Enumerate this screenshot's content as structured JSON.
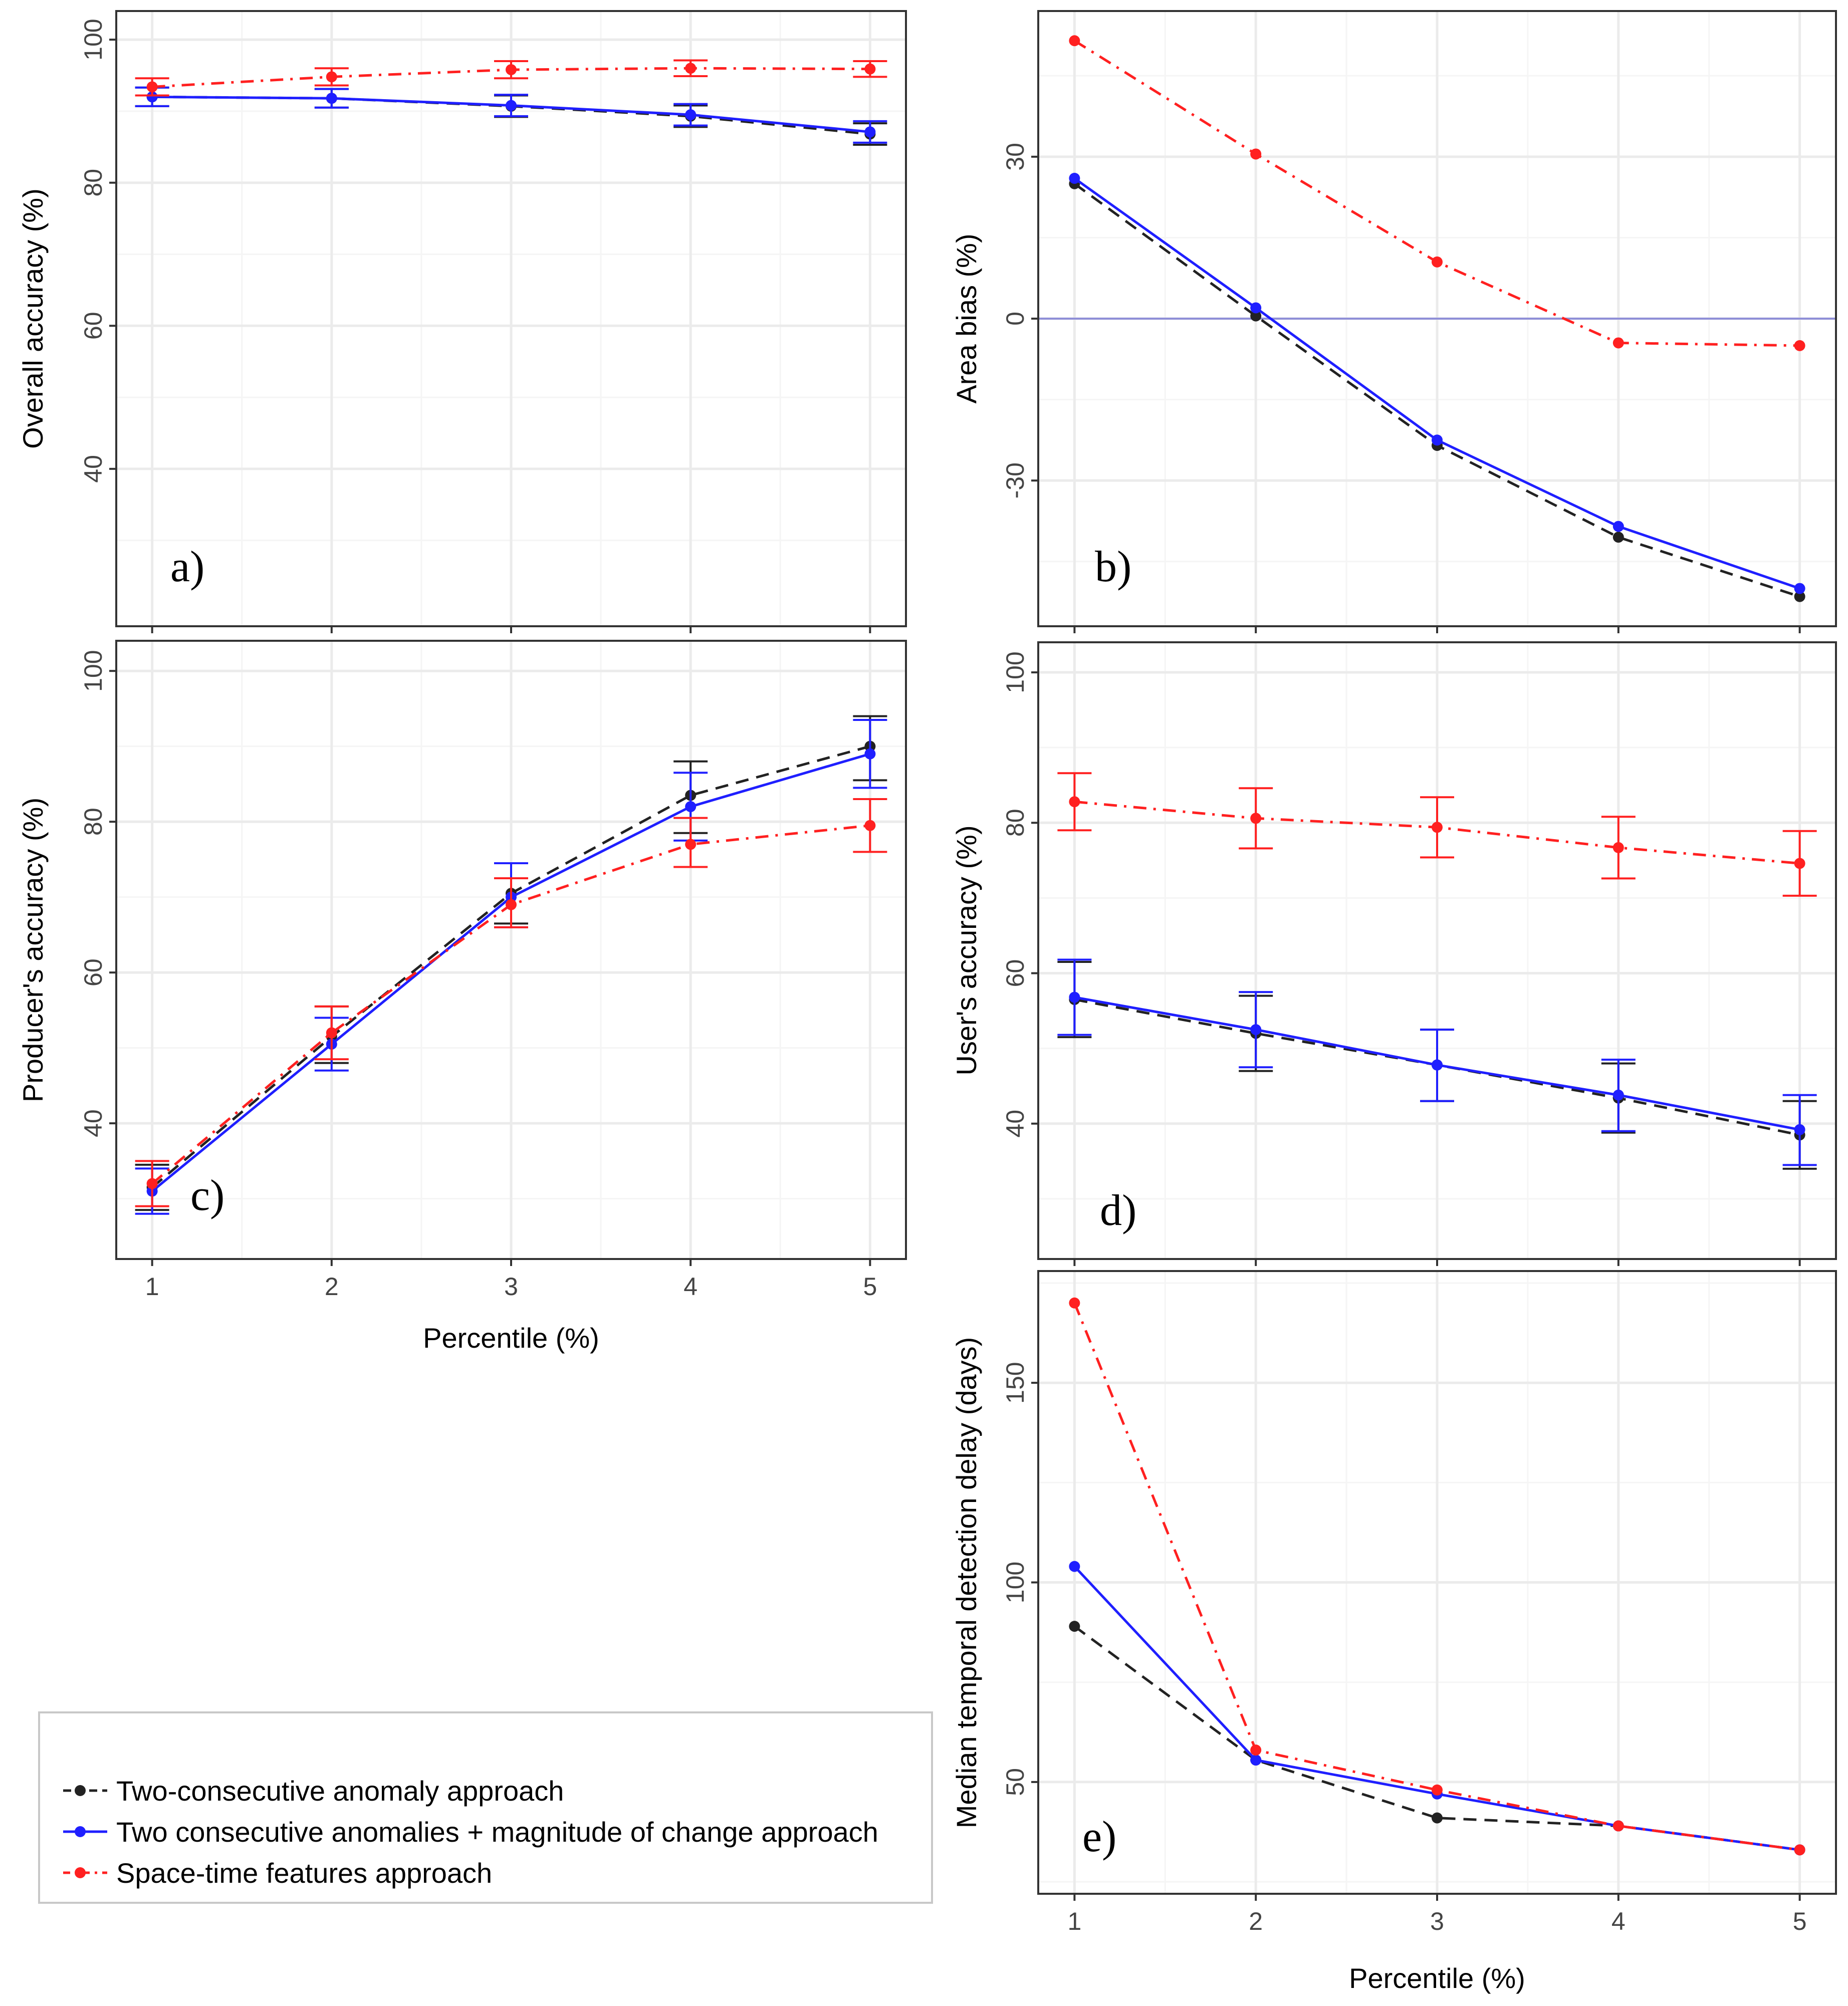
{
  "colors": {
    "two_consecutive": "#222222",
    "two_consecutive_magnitude": "#1f1fff",
    "space_time": "#ff2020",
    "zero_line": "#8f8fd8",
    "grid_major": "#ebebeb",
    "grid_minor": "#f5f5f5",
    "panel_border": "#333333"
  },
  "legend": {
    "entries": [
      {
        "key": "two_consecutive",
        "label": "Two-consecutive anomaly approach"
      },
      {
        "key": "two_consecutive_magnitude",
        "label": "Two consecutive anomalies + magnitude of change approach"
      },
      {
        "key": "space_time",
        "label": "Space-time features approach"
      }
    ]
  },
  "chart_data": [
    {
      "id": "a",
      "panel_label": "a)",
      "type": "line",
      "ylabel": "Overall accuracy (%)",
      "xlabel": "",
      "x": [
        1,
        2,
        3,
        4,
        5
      ],
      "xlim": [
        0.8,
        5.2
      ],
      "ylim": [
        18,
        104
      ],
      "yticks": [
        40,
        60,
        80,
        100
      ],
      "yminor": [
        30,
        50,
        70,
        90
      ],
      "show_x_tick_labels": false,
      "series": [
        {
          "key": "two_consecutive",
          "name": "Two-consecutive anomaly approach",
          "values": [
            92,
            91.8,
            90.7,
            89.3,
            86.8
          ],
          "err_low": [
            90.7,
            90.5,
            89.2,
            87.8,
            85.3
          ],
          "err_high": [
            93.3,
            93.1,
            92.2,
            90.8,
            88.3
          ]
        },
        {
          "key": "two_consecutive_magnitude",
          "name": "Two consecutive anomalies + magnitude of change approach",
          "values": [
            92,
            91.8,
            90.8,
            89.5,
            87.1
          ],
          "err_low": [
            90.7,
            90.5,
            89.3,
            88,
            85.6
          ],
          "err_high": [
            93.3,
            93.1,
            92.3,
            91,
            88.6
          ]
        },
        {
          "key": "space_time",
          "name": "Space-time features approach",
          "values": [
            93.4,
            94.8,
            95.8,
            96,
            95.9
          ],
          "err_low": [
            92.2,
            93.6,
            94.6,
            94.9,
            94.8
          ],
          "err_high": [
            94.6,
            96,
            97,
            97.1,
            97
          ]
        }
      ]
    },
    {
      "id": "b",
      "panel_label": "b)",
      "type": "line",
      "ylabel": "Area bias (%)",
      "xlabel": "",
      "x": [
        1,
        2,
        3,
        4,
        5
      ],
      "xlim": [
        0.8,
        5.2
      ],
      "ylim": [
        -57,
        57
      ],
      "yticks": [
        -30,
        0,
        30
      ],
      "yminor": [
        -45,
        -15,
        15,
        45
      ],
      "show_x_tick_labels": false,
      "hline": 0,
      "series": [
        {
          "key": "two_consecutive",
          "name": "Two-consecutive anomaly approach",
          "values": [
            25,
            0.5,
            -23.5,
            -40.5,
            -51.5
          ]
        },
        {
          "key": "two_consecutive_magnitude",
          "name": "Two consecutive anomalies + magnitude of change approach",
          "values": [
            26,
            2,
            -22.5,
            -38.5,
            -50
          ]
        },
        {
          "key": "space_time",
          "name": "Space-time features approach",
          "values": [
            51.5,
            30.5,
            10.5,
            -4.5,
            -5
          ]
        }
      ]
    },
    {
      "id": "c",
      "panel_label": "c)",
      "type": "line",
      "ylabel": "Producer's accuracy (%)",
      "xlabel": "Percentile (%)",
      "x": [
        1,
        2,
        3,
        4,
        5
      ],
      "xlim": [
        0.8,
        5.2
      ],
      "ylim": [
        22,
        104
      ],
      "yticks": [
        40,
        60,
        80,
        100
      ],
      "yminor": [
        30,
        50,
        70,
        90
      ],
      "xticks": [
        "1",
        "2",
        "3",
        "4",
        "5"
      ],
      "show_x_tick_labels": true,
      "series": [
        {
          "key": "two_consecutive",
          "name": "Two-consecutive anomaly approach",
          "values": [
            31.5,
            51.5,
            70.5,
            83.5,
            90
          ],
          "err_low": [
            28.5,
            48,
            66.5,
            78.5,
            85.5
          ],
          "err_high": [
            34.5,
            55.5,
            74.5,
            88,
            94
          ]
        },
        {
          "key": "two_consecutive_magnitude",
          "name": "Two consecutive anomalies + magnitude of change approach",
          "values": [
            31,
            50.5,
            70,
            82,
            89
          ],
          "err_low": [
            28,
            47,
            66,
            77.5,
            84.5
          ],
          "err_high": [
            34,
            54,
            74.5,
            86.5,
            93.5
          ]
        },
        {
          "key": "space_time",
          "name": "Space-time features approach",
          "values": [
            32,
            52,
            69,
            77,
            79.5
          ],
          "err_low": [
            29,
            48.5,
            66,
            74,
            76
          ],
          "err_high": [
            35,
            55.5,
            72.5,
            80.5,
            83
          ]
        }
      ]
    },
    {
      "id": "d",
      "panel_label": "d)",
      "type": "line",
      "ylabel": "User's accuracy (%)",
      "xlabel": "",
      "x": [
        1,
        2,
        3,
        4,
        5
      ],
      "xlim": [
        0.8,
        5.2
      ],
      "ylim": [
        22,
        104
      ],
      "yticks": [
        40,
        60,
        80,
        100
      ],
      "yminor": [
        30,
        50,
        70,
        90
      ],
      "show_x_tick_labels": false,
      "series": [
        {
          "key": "two_consecutive",
          "name": "Two-consecutive anomaly approach",
          "values": [
            56.5,
            52,
            47.8,
            43.4,
            38.5
          ],
          "err_low": [
            51.5,
            47,
            43,
            38.8,
            34
          ],
          "err_high": [
            61.5,
            57,
            52.5,
            48,
            43
          ]
        },
        {
          "key": "two_consecutive_magnitude",
          "name": "Two consecutive anomalies + magnitude of change approach",
          "values": [
            56.8,
            52.5,
            47.8,
            43.8,
            39.2
          ],
          "err_low": [
            51.8,
            47.5,
            43,
            39,
            34.5
          ],
          "err_high": [
            61.8,
            57.5,
            52.5,
            48.5,
            43.8
          ]
        },
        {
          "key": "space_time",
          "name": "Space-time features approach",
          "values": [
            82.8,
            80.6,
            79.4,
            76.7,
            74.6
          ],
          "err_low": [
            79,
            76.6,
            75.4,
            72.6,
            70.3
          ],
          "err_high": [
            86.6,
            84.6,
            83.4,
            80.8,
            78.9
          ]
        }
      ]
    },
    {
      "id": "e",
      "panel_label": "e)",
      "type": "line",
      "ylabel": "Median temporal detection delay (days)",
      "xlabel": "Percentile (%)",
      "x": [
        1,
        2,
        3,
        4,
        5
      ],
      "xlim": [
        0.8,
        5.2
      ],
      "ylim": [
        22,
        178
      ],
      "yticks": [
        50,
        100,
        150
      ],
      "yminor": [
        25,
        75,
        125,
        175
      ],
      "xticks": [
        "1",
        "2",
        "3",
        "4",
        "5"
      ],
      "show_x_tick_labels": true,
      "series": [
        {
          "key": "two_consecutive",
          "name": "Two-consecutive anomaly approach",
          "values": [
            89,
            55.5,
            41,
            39,
            33
          ]
        },
        {
          "key": "two_consecutive_magnitude",
          "name": "Two consecutive anomalies + magnitude of change approach",
          "values": [
            104,
            55.5,
            47,
            39,
            33
          ]
        },
        {
          "key": "space_time",
          "name": "Space-time features approach",
          "values": [
            170,
            58,
            48,
            39,
            33
          ]
        }
      ]
    }
  ]
}
